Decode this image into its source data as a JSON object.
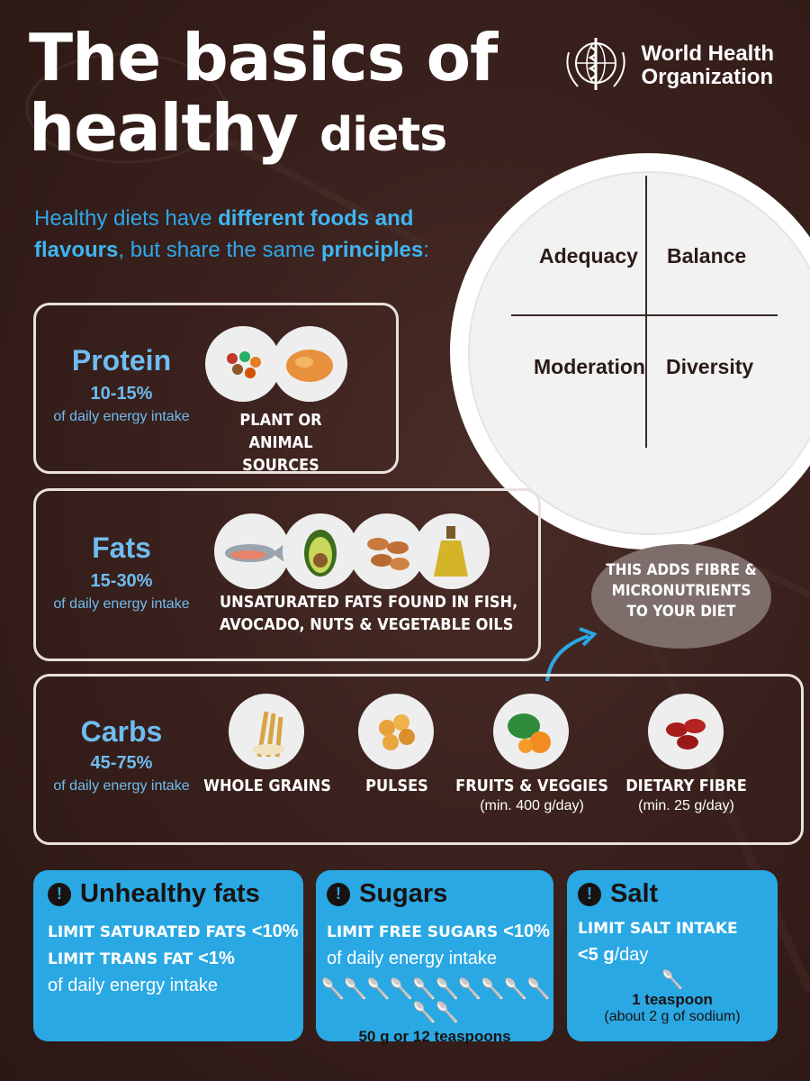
{
  "title": {
    "line1": "The",
    "line1b": "basics",
    "line1c": "of",
    "line2": "healthy",
    "line2b": "diets"
  },
  "org": {
    "name_line1": "World Health",
    "name_line2": "Organization",
    "logo_icon": "who-emblem-icon"
  },
  "intro": {
    "part1": "Healthy diets have ",
    "bold1": "different foods and flavours",
    "part2": ", but share the same ",
    "bold2": "principles",
    "part3": ":"
  },
  "plate": {
    "q1": "Adequacy",
    "q2": "Balance",
    "q3": "Moderation",
    "q4": "Diversity"
  },
  "protein": {
    "name": "Protein",
    "range": "10-15%",
    "note": "of daily energy intake",
    "desc_line1": "PLANT OR ANIMAL",
    "desc_line2": "SOURCES",
    "icons": [
      "legumes-icon",
      "chicken-icon"
    ]
  },
  "fats": {
    "name": "Fats",
    "range": "15-30%",
    "note": "of daily energy intake",
    "desc_line1": "UNSATURATED FATS FOUND IN FISH,",
    "desc_line2": "AVOCADO, NUTS & VEGETABLE OILS",
    "icons": [
      "fish-icon",
      "avocado-icon",
      "nuts-icon",
      "oil-icon"
    ]
  },
  "bubble": {
    "line1": "THIS ADDS FIBRE &",
    "line2": "MICRONUTRIENTS",
    "line3": "TO YOUR DIET"
  },
  "carbs": {
    "name": "Carbs",
    "range": "45-75%",
    "note": "of daily energy intake",
    "items": [
      {
        "label": "WHOLE GRAINS",
        "sub": "",
        "icon": "wheat-icon"
      },
      {
        "label": "PULSES",
        "sub": "",
        "icon": "chickpeas-icon"
      },
      {
        "label": "FRUITS & VEGGIES",
        "sub": "(min. 400 g/day)",
        "icon": "vegetables-icon"
      },
      {
        "label": "DIETARY FIBRE",
        "sub": "(min. 25 g/day)",
        "icon": "beans-icon"
      }
    ]
  },
  "unhealthy": {
    "title": "Unhealthy fats",
    "l1a": "LIMIT SATURATED FATS ",
    "l1b": "<10%",
    "l2a": "LIMIT TRANS FAT ",
    "l2b": "<1%",
    "l3": "of daily energy intake"
  },
  "sugars": {
    "title": "Sugars",
    "l1a": "LIMIT FREE SUGARS ",
    "l1b": "<10%",
    "l2": "of daily energy intake",
    "spoon_count": 12,
    "l3": "50 g or 12 teaspoons"
  },
  "salt": {
    "title": "Salt",
    "l1": "LIMIT SALT INTAKE",
    "l2a": "<5 g",
    "l2b": "/day",
    "l3": "1 teaspoon",
    "l4": "(about 2 g of sodium)"
  },
  "colors": {
    "bg": "#3a211d",
    "accent_blue": "#2aa8e4",
    "label_blue": "#6fbcf0"
  }
}
